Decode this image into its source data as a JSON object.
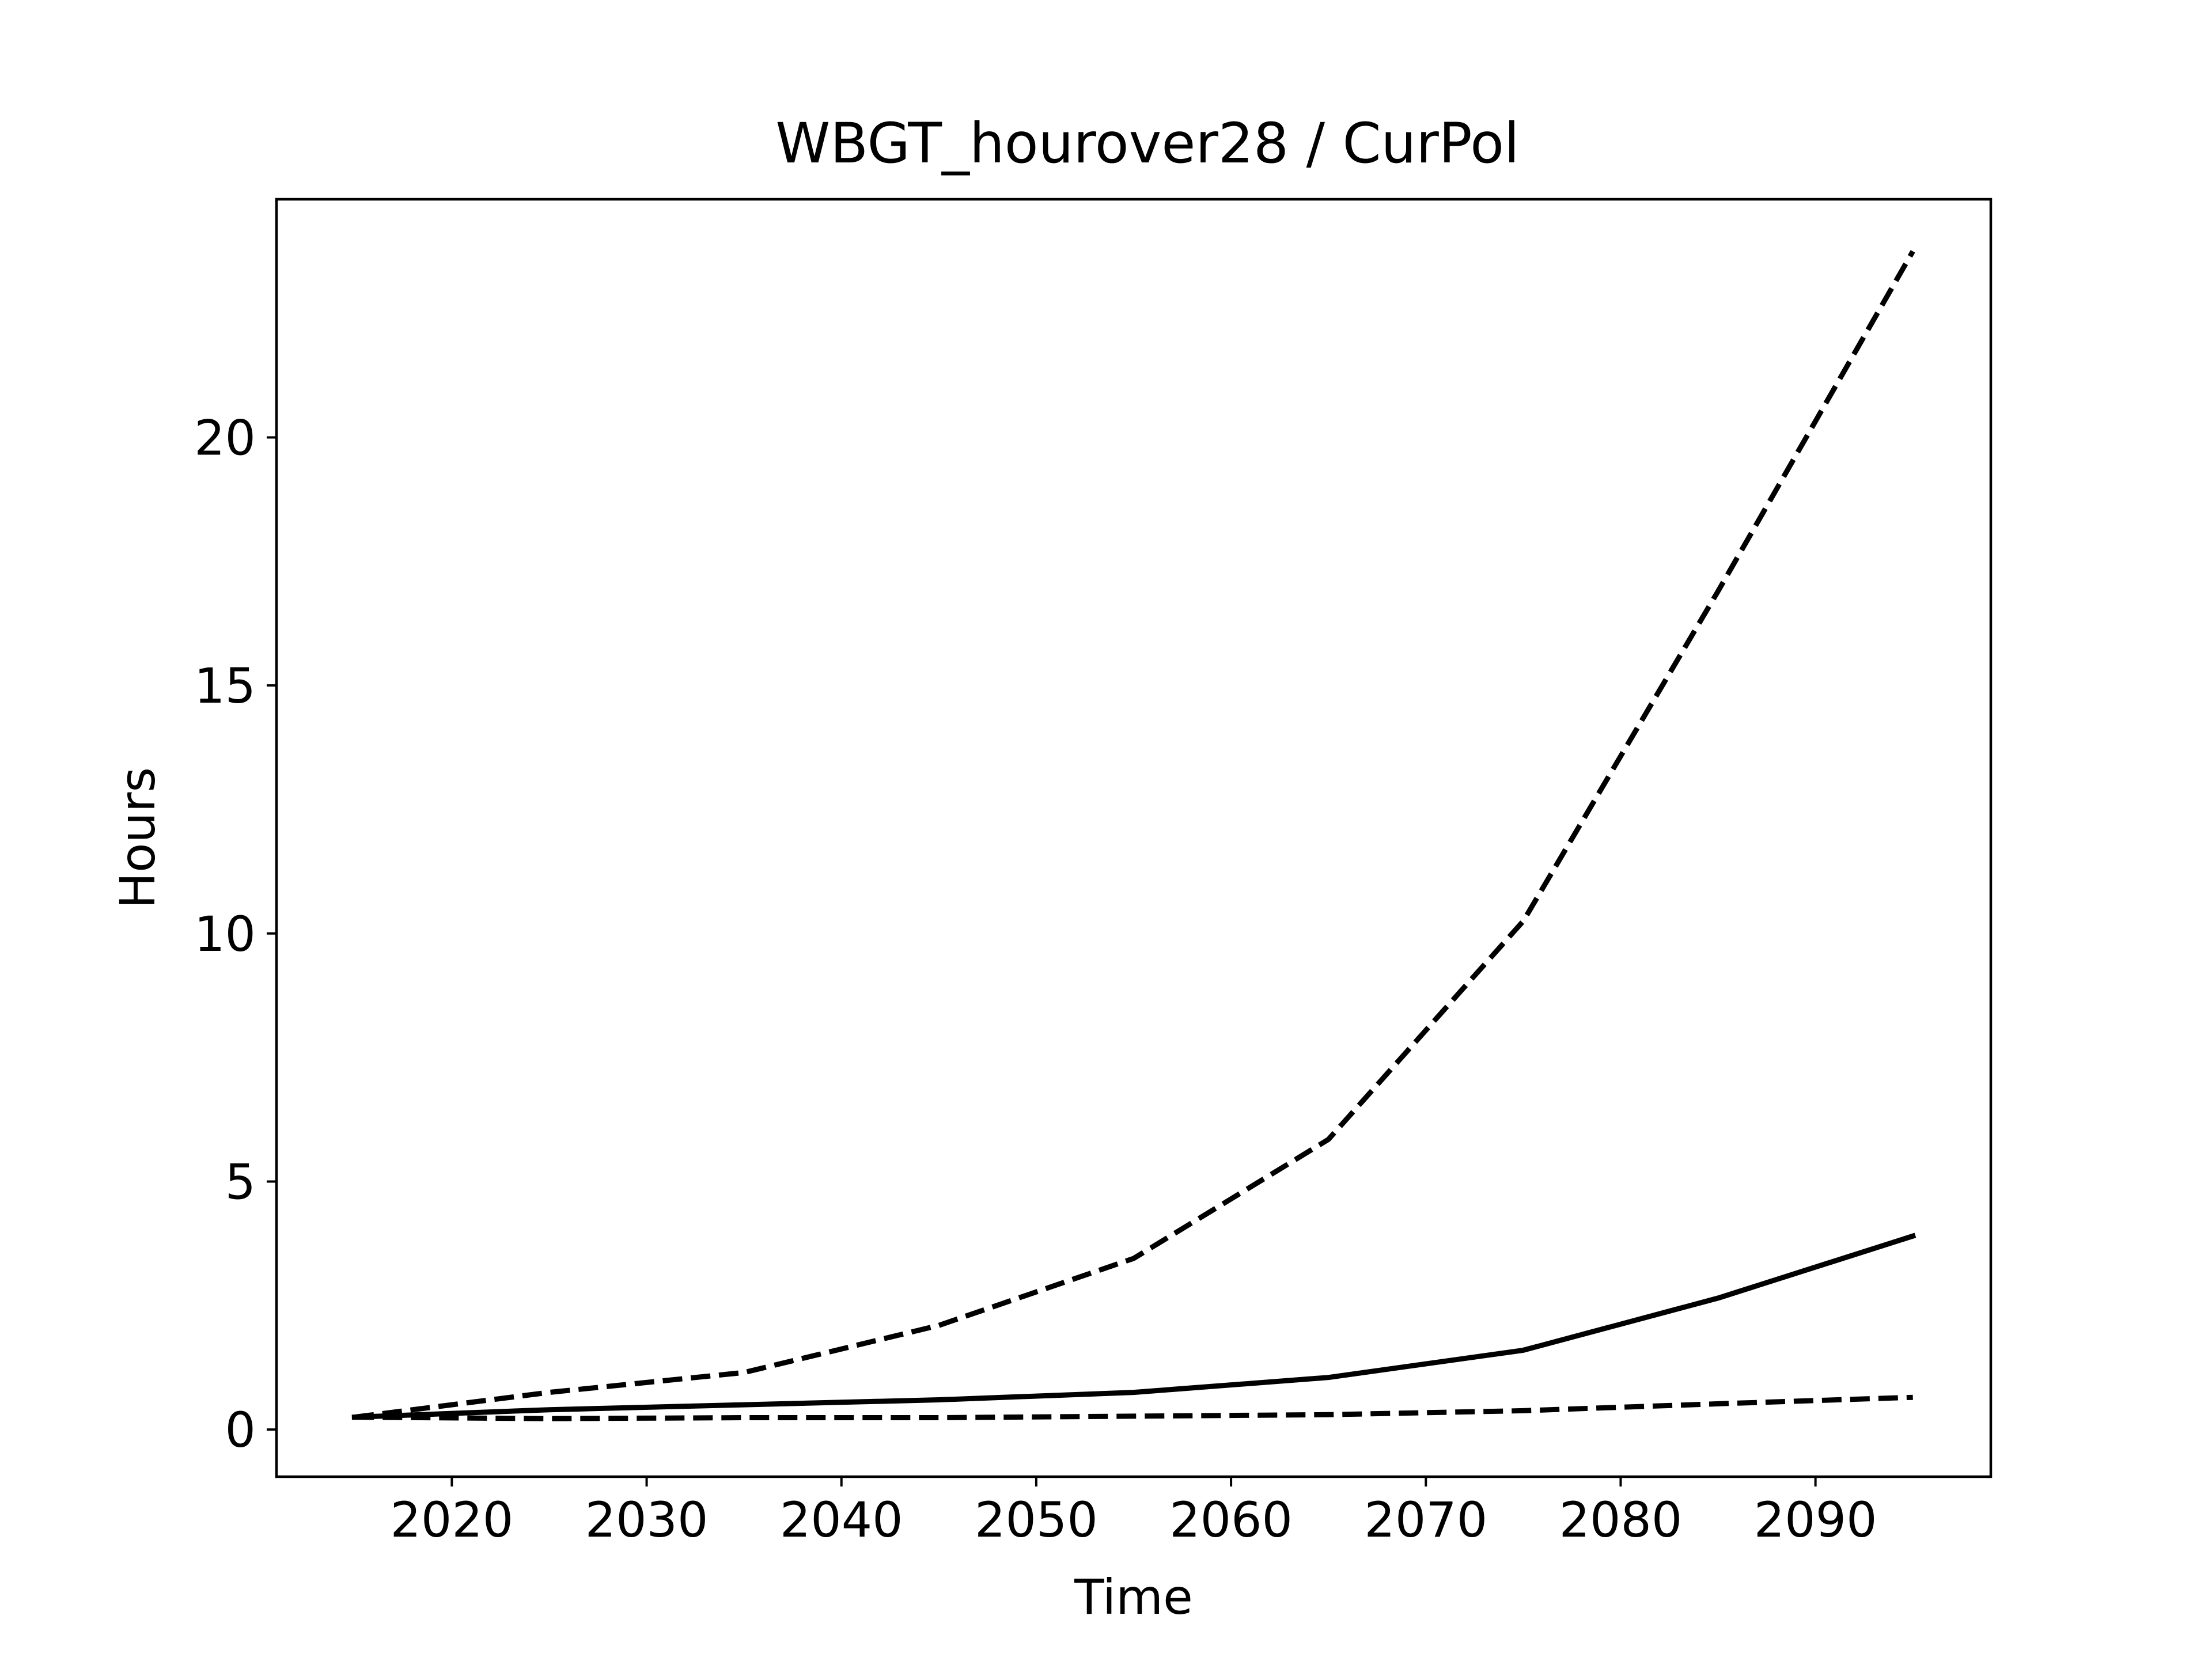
{
  "chart_data": {
    "type": "line",
    "title": "WBGT_hourover28 / CurPol",
    "xlabel": "Time",
    "ylabel": "Hours",
    "xlim": [
      2011,
      2099
    ],
    "ylim": [
      -0.95,
      24.8
    ],
    "x_ticks": [
      2020,
      2030,
      2040,
      2050,
      2060,
      2070,
      2080,
      2090
    ],
    "y_ticks": [
      0,
      5,
      10,
      15,
      20
    ],
    "grid": false,
    "legend": "none",
    "x": [
      2015,
      2025,
      2035,
      2045,
      2055,
      2065,
      2075,
      2085,
      2095
    ],
    "series": [
      {
        "line_style": "dashed",
        "color": "#000000",
        "values": [
          0.25,
          0.75,
          1.15,
          2.1,
          3.45,
          5.85,
          10.25,
          16.9,
          23.75
        ]
      },
      {
        "line_style": "solid",
        "color": "#000000",
        "values": [
          0.25,
          0.4,
          0.5,
          0.6,
          0.75,
          1.05,
          1.6,
          2.65,
          3.9
        ]
      },
      {
        "line_style": "dashed",
        "color": "#000000",
        "values": [
          0.25,
          0.22,
          0.24,
          0.24,
          0.27,
          0.3,
          0.38,
          0.52,
          0.65
        ]
      }
    ]
  }
}
